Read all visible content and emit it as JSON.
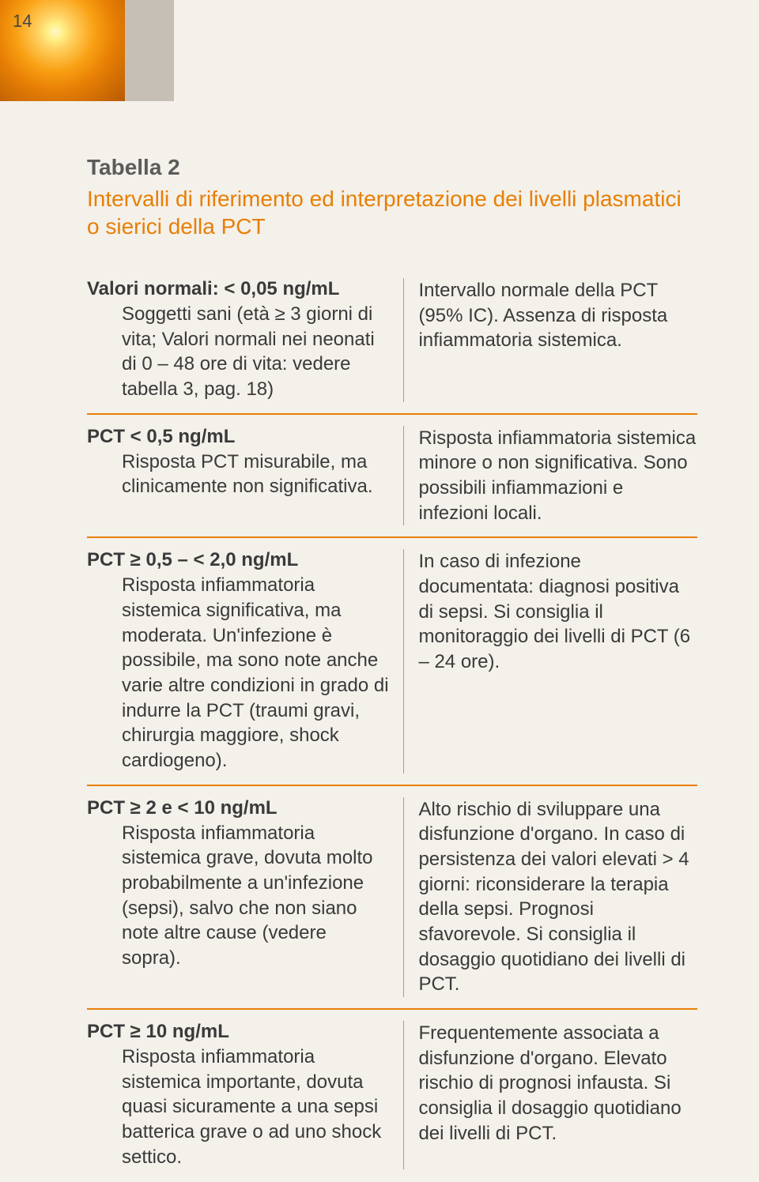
{
  "page_number": "14",
  "table": {
    "caption": "Tabella 2",
    "title": "Intervalli di riferimento ed interpretazione dei livelli plasmatici o sierici della PCT",
    "rows": [
      {
        "range": "Valori normali: < 0,05 ng/mL",
        "left": "Soggetti sani (età ≥ 3 giorni di vita; Valori normali nei neonati di 0 – 48 ore di vita: vedere tabella 3, pag. 18)",
        "right": "Intervallo normale della PCT (95% IC). Assenza di risposta infiammatoria sistemica."
      },
      {
        "range": "PCT < 0,5 ng/mL",
        "left": "Risposta PCT misurabile, ma clinicamente non significativa.",
        "right": "Risposta infiammatoria sistemica minore o non significativa. Sono possibili infiammazioni e infezioni locali."
      },
      {
        "range": "PCT ≥ 0,5 – < 2,0 ng/mL",
        "left": "Risposta infiammatoria sistemica significativa, ma moderata. Un'infezione è possibile, ma sono note anche varie altre condizioni in grado di indurre la PCT (traumi gravi, chirurgia maggiore, shock cardiogeno).",
        "right": "In caso di infezione documentata: diagnosi positiva di sepsi. Si consiglia il monitoraggio dei livelli di PCT (6 – 24 ore)."
      },
      {
        "range": "PCT ≥ 2 e < 10 ng/mL",
        "left": "Risposta infiammatoria sistemica grave, dovuta molto probabilmente a un'infezione (sepsi), salvo che non siano note altre cause (vedere sopra).",
        "right": "Alto rischio di sviluppare una disfunzione d'organo. In caso di persistenza dei valori elevati > 4 giorni: riconsiderare la terapia della sepsi. Prognosi sfavorevole. Si consiglia il dosaggio quotidiano dei livelli di PCT."
      },
      {
        "range": "PCT ≥ 10 ng/mL",
        "left": "Risposta infiammatoria sistemica importante, dovuta quasi sicuramente a una sepsi batterica grave o ad uno shock settico.",
        "right": "Frequentemente associata a disfunzione d'organo. Elevato rischio di prognosi infausta. Si consiglia il dosaggio quotidiano dei livelli di PCT."
      }
    ]
  },
  "colors": {
    "accent": "#e77f05",
    "background": "#f4f0ea",
    "stripe": "#c6bfb5",
    "text": "#3a3a3a",
    "caption": "#5b5b5b",
    "col_divider": "#a89f92"
  }
}
